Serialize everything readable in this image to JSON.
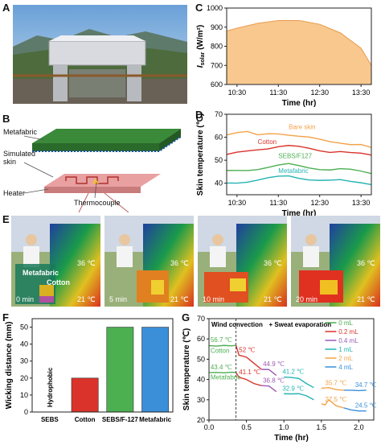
{
  "panels": {
    "A": "A",
    "B": "B",
    "C": "C",
    "D": "D",
    "E": "E",
    "F": "F",
    "G": "G"
  },
  "schematic": {
    "metafabric": "Metafabric",
    "simulated_skin": "Simulated\nskin",
    "heater": "Heater",
    "thermocouple": "Thermocouple"
  },
  "thermal": {
    "labels": [
      "0 min",
      "5 min",
      "10 min",
      "20 min"
    ],
    "hot": [
      "36 ℃",
      "36 ℃",
      "36 ℃",
      "36 ℃"
    ],
    "cold": [
      "21 ℃",
      "21 ℃",
      "21 ℃",
      "21 ℃"
    ],
    "annot_metafabric": "Metafabric",
    "annot_cotton": "Cotton"
  },
  "colors": {
    "orange": "#f3a24b",
    "red": "#d9332b",
    "green": "#4caf50",
    "teal": "#26b3b3",
    "purple": "#9b59b6",
    "blue": "#3b8fd9",
    "skin": "#e8a0a0",
    "fabric": "#3a8a3a",
    "solar_fill": "#f8c88f"
  },
  "chart_data": [
    {
      "id": "C",
      "type": "area",
      "x": [
        "10:15",
        "10:30",
        "11:00",
        "11:30",
        "12:00",
        "12:30",
        "13:00",
        "13:30",
        "13:45"
      ],
      "y": [
        880,
        895,
        920,
        935,
        935,
        915,
        870,
        790,
        700
      ],
      "xticks": [
        "10:30",
        "11:30",
        "12:30",
        "13:30"
      ],
      "yticks": [
        600,
        700,
        800,
        900,
        1000
      ],
      "ylim": [
        600,
        1000
      ],
      "xlabel": "Time (hr)",
      "ylabel": "I_solar (W/m²)"
    },
    {
      "id": "D",
      "type": "line",
      "x": [
        "10:15",
        "10:30",
        "10:45",
        "11:00",
        "11:15",
        "11:30",
        "11:45",
        "12:00",
        "12:15",
        "12:30",
        "12:45",
        "13:00",
        "13:15",
        "13:30",
        "13:45"
      ],
      "series": [
        {
          "name": "Bare skin",
          "values": [
            61,
            61.5,
            62,
            61,
            62,
            62,
            61,
            60,
            59.5,
            59,
            58.5,
            58,
            57,
            56.5,
            55
          ]
        },
        {
          "name": "Cotton",
          "values": [
            52,
            53,
            54,
            55,
            55.5,
            56,
            56,
            55.5,
            55,
            54.5,
            54,
            54,
            53,
            52.5,
            52
          ]
        },
        {
          "name": "SEBS/F127",
          "values": [
            45,
            45.5,
            46,
            46.5,
            47,
            47.5,
            48,
            47.5,
            47,
            46.5,
            46,
            46,
            45.5,
            45,
            44.5
          ]
        },
        {
          "name": "Metafabric",
          "values": [
            40,
            40.5,
            41,
            41.5,
            42,
            42.5,
            43,
            42.5,
            42,
            41.5,
            41,
            41,
            40.5,
            40.5,
            40
          ]
        }
      ],
      "xticks": [
        "10:30",
        "11:30",
        "12:30",
        "13:30"
      ],
      "yticks": [
        40,
        50,
        60,
        70
      ],
      "ylim": [
        35,
        70
      ],
      "xlabel": "Time (hr)",
      "ylabel": "Skin temperature (℃)"
    },
    {
      "id": "F",
      "type": "bar",
      "categories": [
        "SEBS",
        "Cotton",
        "SEBS/F-127",
        "Metafabric"
      ],
      "values": [
        0,
        20,
        50,
        50
      ],
      "value_labels": [
        "Hydrophobic",
        "",
        "",
        ""
      ],
      "yticks": [
        0,
        10,
        20,
        30,
        40,
        50
      ],
      "ylim": [
        0,
        55
      ],
      "ylabel": "Wicking distance (mm)"
    },
    {
      "id": "G",
      "type": "line",
      "legend": [
        "0 mL",
        "0.2 mL",
        "0.4 mL",
        "1 mL",
        "2 mL",
        "4 mL"
      ],
      "cotton": {
        "x": [
          0,
          0.1,
          0.2,
          0.3,
          0.36,
          0.4,
          0.5,
          0.6,
          0.7,
          0.8,
          0.9,
          1.0,
          1.1,
          1.2,
          1.3,
          1.4,
          1.5,
          1.6,
          1.7,
          1.8,
          1.9,
          2.0,
          2.1
        ],
        "y": [
          56.7,
          56.5,
          56.8,
          56.6,
          56.9,
          52,
          51,
          48,
          45,
          44.9,
          42,
          41.2,
          41,
          40.5,
          38,
          36,
          35.7,
          36,
          35,
          34.7,
          34.7,
          34.5,
          34.7
        ]
      },
      "metafabric": {
        "x": [
          0,
          0.1,
          0.2,
          0.3,
          0.36,
          0.4,
          0.5,
          0.6,
          0.7,
          0.8,
          0.9,
          1.0,
          1.1,
          1.2,
          1.3,
          1.4,
          1.5,
          1.55,
          1.6,
          1.7,
          1.8,
          1.9,
          2.0,
          2.1
        ],
        "y": [
          43.4,
          43.5,
          43.3,
          43.6,
          43.5,
          41.1,
          40,
          38,
          37,
          36.8,
          34,
          33,
          32.9,
          33,
          32,
          30,
          28,
          27.5,
          30,
          27,
          26,
          25,
          24.5,
          24.5
        ]
      },
      "annotations": [
        "56.7 ℃",
        "52 ℃",
        "44.9 ℃",
        "41.2 ℃",
        "35.7 ℃",
        "34.7 ℃",
        "43.4 ℃",
        "41.1 ℃",
        "36.8 ℃",
        "32.9 ℃",
        "27.5 ℃",
        "24.5 ℃"
      ],
      "line_labels": [
        "Cotton",
        "Metafabric"
      ],
      "top_labels": [
        "Wind convection",
        "+ Sweat evaporation"
      ],
      "yticks": [
        20,
        30,
        40,
        50,
        60,
        70
      ],
      "xticks": [
        "0.0",
        "0.5",
        "1.0",
        "1.5",
        "2.0"
      ],
      "ylim": [
        20,
        70
      ],
      "xlim": [
        0,
        2.2
      ],
      "xlabel": "Time (hr)",
      "ylabel": "Skin temperature (℃)"
    }
  ]
}
